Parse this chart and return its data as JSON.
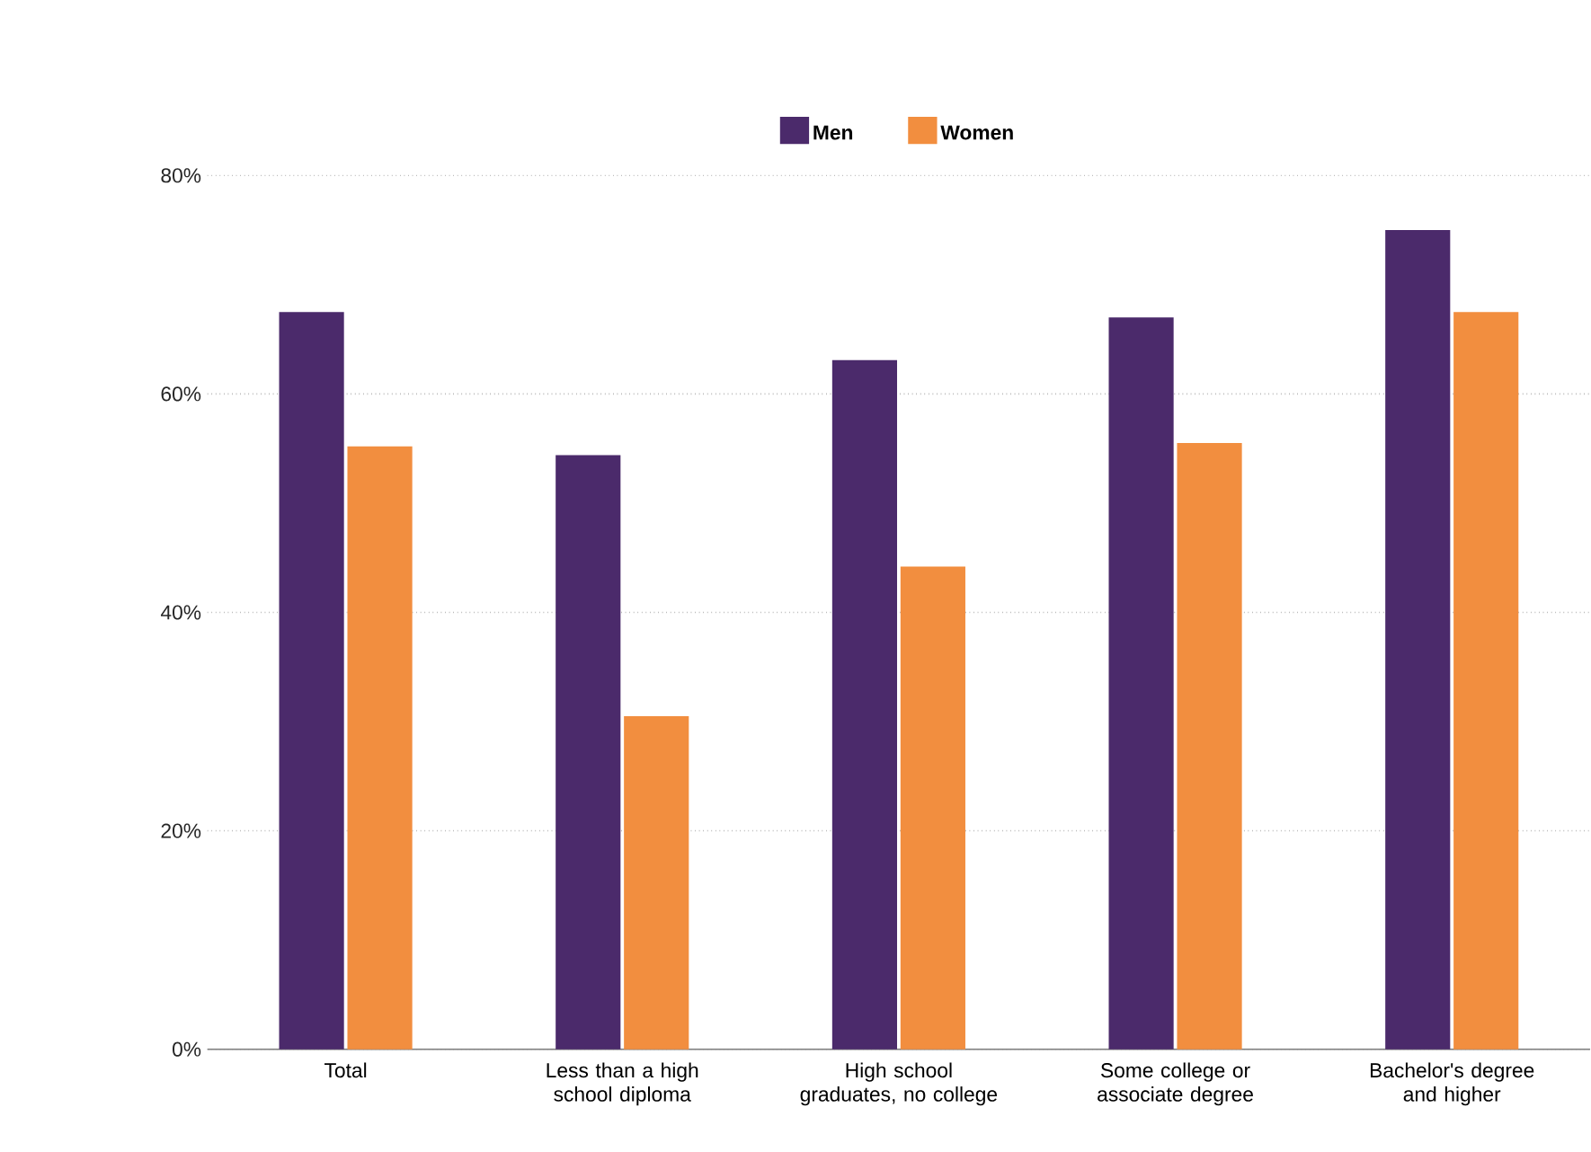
{
  "chart_data": {
    "type": "bar",
    "categories": [
      "Total",
      "Less than a high school diploma",
      "High school graduates, no college",
      "Some college or associate degree",
      "Bachelor's degree and higher"
    ],
    "series": [
      {
        "name": "Men",
        "color": "#4b2a6b",
        "values": [
          67.5,
          54.4,
          63.1,
          67.0,
          75.0
        ]
      },
      {
        "name": "Women",
        "color": "#f28e3f",
        "values": [
          55.2,
          30.5,
          44.2,
          55.5,
          67.5
        ]
      }
    ],
    "ylim": [
      0,
      80
    ],
    "yticks": [
      {
        "value": 0,
        "label": "0%"
      },
      {
        "value": 20,
        "label": "20%"
      },
      {
        "value": 40,
        "label": "40%"
      },
      {
        "value": 60,
        "label": "60%"
      },
      {
        "value": 80,
        "label": "80%"
      }
    ],
    "grid": "y",
    "legend": "top"
  }
}
